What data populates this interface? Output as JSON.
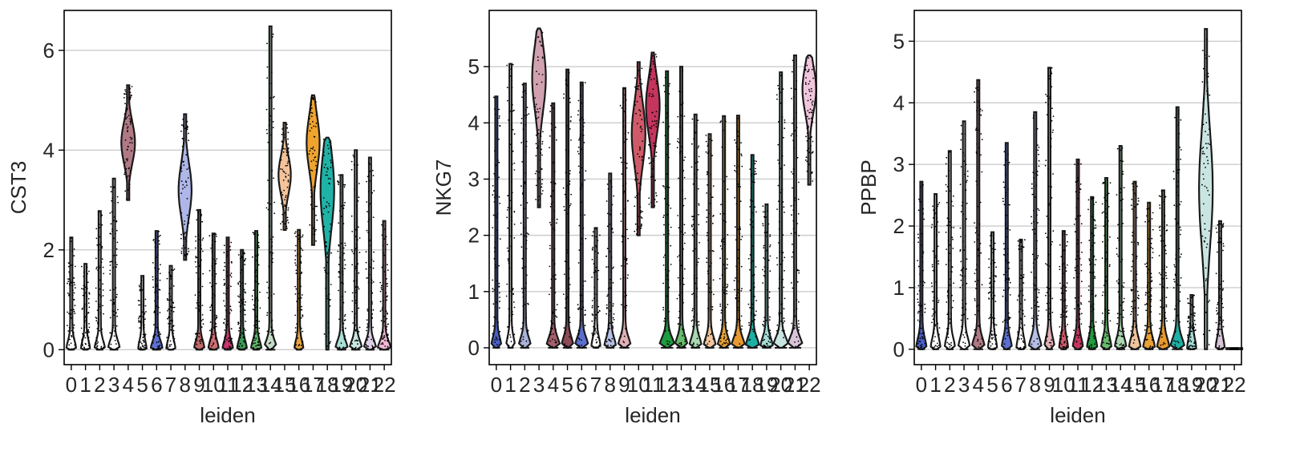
{
  "chart_data": [
    {
      "type": "violin",
      "ylabel": "CST3",
      "xlabel": "leiden",
      "grid": "horizontal",
      "ylim": [
        -0.3,
        6.8
      ],
      "yticks": [
        0,
        2,
        4,
        6
      ],
      "categories": [
        "0",
        "1",
        "2",
        "3",
        "4",
        "5",
        "6",
        "7",
        "8",
        "9",
        "10",
        "11",
        "12",
        "13",
        "14",
        "15",
        "16",
        "17",
        "18",
        "19",
        "20",
        "21",
        "22"
      ],
      "groups": [
        {
          "max": 2.25,
          "mode": 0.0,
          "width": 0.55
        },
        {
          "max": 1.72,
          "mode": 0.0,
          "width": 0.5
        },
        {
          "max": 2.78,
          "mode": 0.0,
          "width": 0.6
        },
        {
          "max": 3.43,
          "mode": 0.0,
          "width": 0.7
        },
        {
          "max": 5.3,
          "min": 3.0,
          "mode": 4.15,
          "width": 1.0
        },
        {
          "max": 1.48,
          "mode": 0.0,
          "width": 0.45
        },
        {
          "max": 2.38,
          "mode": 0.0,
          "width": 0.7
        },
        {
          "max": 1.68,
          "mode": 0.0,
          "width": 0.5
        },
        {
          "max": 4.72,
          "min": 1.8,
          "mode": 3.2,
          "width": 0.95
        },
        {
          "max": 2.8,
          "mode": 0.0,
          "width": 0.6
        },
        {
          "max": 2.33,
          "mode": 0.0,
          "width": 0.6
        },
        {
          "max": 2.25,
          "mode": 0.0,
          "width": 0.6
        },
        {
          "max": 2.0,
          "mode": 0.0,
          "width": 0.55
        },
        {
          "max": 2.38,
          "mode": 0.0,
          "width": 0.6
        },
        {
          "max": 6.48,
          "mode": 0.0,
          "width": 0.8
        },
        {
          "max": 4.55,
          "min": 2.4,
          "mode": 3.5,
          "width": 0.9
        },
        {
          "max": 2.4,
          "mode": 0.0,
          "width": 0.5
        },
        {
          "max": 5.1,
          "min": 2.1,
          "mode": 4.15,
          "width": 0.95
        },
        {
          "max": 4.25,
          "min": 0.0,
          "mode": 3.2,
          "width": 1.0
        },
        {
          "max": 3.5,
          "mode": 0.0,
          "width": 0.75
        },
        {
          "max": 4.0,
          "mode": 0.0,
          "width": 0.75
        },
        {
          "max": 3.85,
          "mode": 0.0,
          "width": 0.75
        },
        {
          "max": 2.58,
          "mode": 0.0,
          "width": 0.8
        }
      ]
    },
    {
      "type": "violin",
      "ylabel": "NKG7",
      "xlabel": "leiden",
      "grid": "horizontal",
      "ylim": [
        -0.3,
        6.0
      ],
      "yticks": [
        0,
        1,
        2,
        3,
        4,
        5
      ],
      "categories": [
        "0",
        "1",
        "2",
        "3",
        "4",
        "5",
        "6",
        "7",
        "8",
        "9",
        "10",
        "11",
        "12",
        "13",
        "14",
        "15",
        "16",
        "17",
        "18",
        "19",
        "20",
        "21",
        "22"
      ],
      "groups": [
        {
          "max": 4.47,
          "mode": 0.0,
          "width": 0.6
        },
        {
          "max": 5.05,
          "mode": 0.0,
          "width": 0.5
        },
        {
          "max": 4.7,
          "mode": 0.0,
          "width": 0.75
        },
        {
          "max": 5.68,
          "min": 2.5,
          "mode": 4.8,
          "width": 1.0
        },
        {
          "max": 4.35,
          "mode": 0.0,
          "width": 0.85
        },
        {
          "max": 4.95,
          "mode": 0.0,
          "width": 0.75
        },
        {
          "max": 4.72,
          "mode": 0.0,
          "width": 0.85
        },
        {
          "max": 2.13,
          "mode": 0.0,
          "width": 0.5
        },
        {
          "max": 3.1,
          "mode": 0.0,
          "width": 0.7
        },
        {
          "max": 4.62,
          "mode": 0.0,
          "width": 0.8
        },
        {
          "max": 5.08,
          "min": 2.0,
          "mode": 3.8,
          "width": 1.0
        },
        {
          "max": 5.25,
          "min": 2.5,
          "mode": 4.3,
          "width": 1.0
        },
        {
          "max": 4.92,
          "mode": 0.0,
          "width": 1.0
        },
        {
          "max": 5.0,
          "mode": 0.0,
          "width": 0.8
        },
        {
          "max": 4.15,
          "mode": 0.0,
          "width": 0.75
        },
        {
          "max": 3.8,
          "mode": 0.0,
          "width": 0.75
        },
        {
          "max": 4.12,
          "mode": 0.0,
          "width": 0.8
        },
        {
          "max": 4.13,
          "mode": 0.0,
          "width": 0.85
        },
        {
          "max": 3.43,
          "mode": 0.0,
          "width": 0.85
        },
        {
          "max": 2.55,
          "mode": 0.0,
          "width": 0.75
        },
        {
          "max": 4.9,
          "mode": 0.0,
          "width": 1.0
        },
        {
          "max": 5.2,
          "mode": 0.0,
          "width": 1.0
        },
        {
          "max": 5.2,
          "min": 2.9,
          "mode": 4.6,
          "width": 1.0
        }
      ]
    },
    {
      "type": "violin",
      "ylabel": "PPBP",
      "xlabel": "leiden",
      "grid": "horizontal",
      "ylim": [
        -0.25,
        5.5
      ],
      "yticks": [
        0,
        1,
        2,
        3,
        4,
        5
      ],
      "categories": [
        "0",
        "1",
        "2",
        "3",
        "4",
        "5",
        "6",
        "7",
        "8",
        "9",
        "10",
        "11",
        "12",
        "13",
        "14",
        "15",
        "16",
        "17",
        "18",
        "19",
        "20",
        "21",
        "22"
      ],
      "groups": [
        {
          "max": 2.72,
          "mode": 0.0,
          "width": 0.6
        },
        {
          "max": 2.52,
          "mode": 0.0,
          "width": 0.55
        },
        {
          "max": 3.22,
          "mode": 0.0,
          "width": 0.6
        },
        {
          "max": 3.7,
          "mode": 0.0,
          "width": 0.7
        },
        {
          "max": 4.37,
          "mode": 0.0,
          "width": 0.8
        },
        {
          "max": 1.9,
          "mode": 0.0,
          "width": 0.5
        },
        {
          "max": 3.35,
          "mode": 0.0,
          "width": 0.6
        },
        {
          "max": 1.78,
          "mode": 0.0,
          "width": 0.5
        },
        {
          "max": 3.85,
          "mode": 0.0,
          "width": 0.8
        },
        {
          "max": 4.57,
          "mode": 0.0,
          "width": 0.6
        },
        {
          "max": 1.92,
          "mode": 0.0,
          "width": 0.5
        },
        {
          "max": 3.08,
          "mode": 0.0,
          "width": 0.6
        },
        {
          "max": 2.47,
          "mode": 0.0,
          "width": 0.6
        },
        {
          "max": 2.78,
          "mode": 0.0,
          "width": 0.6
        },
        {
          "max": 3.3,
          "mode": 0.0,
          "width": 0.7
        },
        {
          "max": 2.72,
          "mode": 0.0,
          "width": 0.7
        },
        {
          "max": 2.38,
          "mode": 0.0,
          "width": 0.7
        },
        {
          "max": 2.58,
          "mode": 0.0,
          "width": 0.75
        },
        {
          "max": 3.93,
          "mode": 0.0,
          "width": 0.9
        },
        {
          "max": 0.88,
          "mode": 0.0,
          "width": 0.5
        },
        {
          "max": 5.2,
          "min": 0.0,
          "mode": 2.6,
          "width": 1.0
        },
        {
          "max": 2.08,
          "mode": 0.0,
          "width": 0.5
        },
        {
          "max": 0.02,
          "mode": 0.0,
          "width": 1.0
        }
      ]
    }
  ],
  "palette": [
    "#1f77b4",
    "#ff7f0e",
    "#279e68",
    "#d62728",
    "#aa40fc",
    "#8c564b",
    "#e377c2",
    "#b5bd61",
    "#17becf",
    "#aec7e8",
    "#ffbb78",
    "#98df8a",
    "#ff9896",
    "#c5b0d5",
    "#c49c94",
    "#f7b6d2",
    "#dbdb8d",
    "#9edae5",
    "#ad494a",
    "#8c6d31",
    "#b8d2d0",
    "#dfc3cf",
    "#f2b9d5"
  ]
}
